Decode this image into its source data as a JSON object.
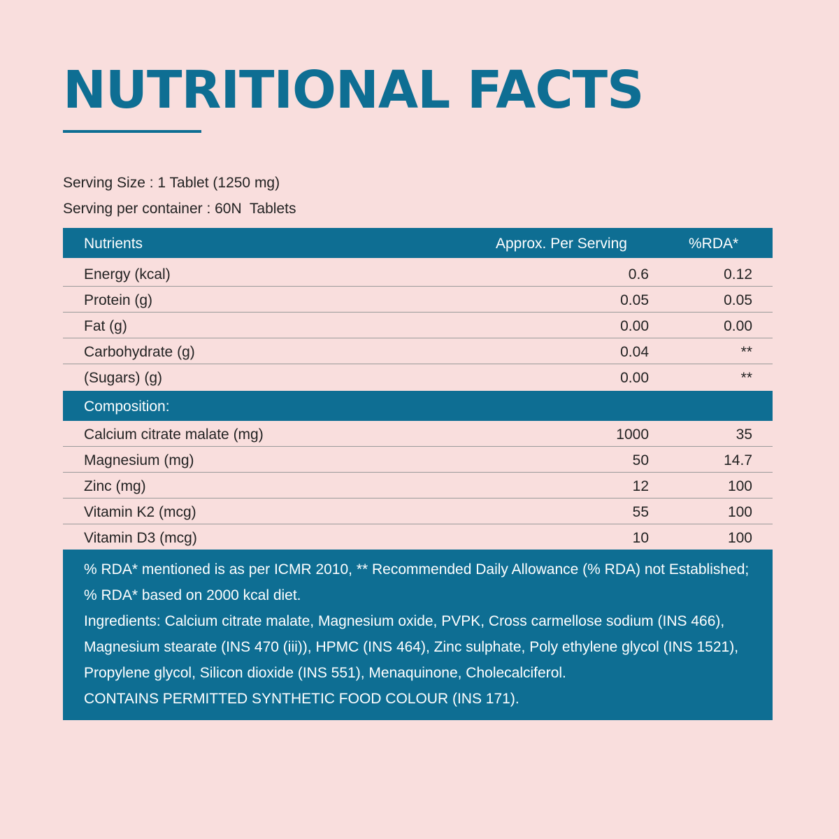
{
  "header": {
    "title": "NUTRITIONAL FACTS"
  },
  "serving": {
    "size": "Serving Size : 1 Tablet (1250 mg)",
    "per_container": "Serving per container : 60N  Tablets"
  },
  "nutrients_table": {
    "columns": [
      "Nutrients",
      "Approx. Per Serving",
      "%RDA*"
    ],
    "rows": [
      {
        "name": "Energy (kcal)",
        "per_serving": "0.6",
        "rda": "0.12"
      },
      {
        "name": "Protein (g)",
        "per_serving": "0.05",
        "rda": "0.05"
      },
      {
        "name": "Fat (g)",
        "per_serving": "0.00",
        "rda": "0.00"
      },
      {
        "name": "Carbohydrate (g)",
        "per_serving": "0.04",
        "rda": "**"
      },
      {
        "name": "(Sugars) (g)",
        "per_serving": "0.00",
        "rda": "**"
      }
    ]
  },
  "composition_table": {
    "heading": "Composition:",
    "rows": [
      {
        "name": "Calcium citrate malate (mg)",
        "per_serving": "1000",
        "rda": "35"
      },
      {
        "name": "Magnesium (mg)",
        "per_serving": "50",
        "rda": "14.7"
      },
      {
        "name": "Zinc (mg)",
        "per_serving": "12",
        "rda": "100"
      },
      {
        "name": "Vitamin K2 (mcg)",
        "per_serving": "55",
        "rda": "100"
      },
      {
        "name": "Vitamin D3 (mcg)",
        "per_serving": "10",
        "rda": "100"
      }
    ]
  },
  "footnote": {
    "rda_note": "% RDA* mentioned is as per ICMR 2010, ** Recommended Daily Allowance (% RDA) not Established; % RDA* based on 2000 kcal diet.",
    "ingredients": "Ingredients: Calcium citrate malate, Magnesium oxide, PVPK, Cross carmellose sodium (INS 466), Magnesium stearate (INS 470 (iii)), HPMC (INS 464), Zinc sulphate, Poly ethylene glycol (INS 1521), Propylene glycol, Silicon dioxide (INS 551), Menaquinone, Cholecalciferol.",
    "colour_note": "CONTAINS PERMITTED SYNTHETIC FOOD COLOUR (INS 171)."
  },
  "colors": {
    "background": "#f9dedd",
    "accent": "#0e6e93"
  }
}
